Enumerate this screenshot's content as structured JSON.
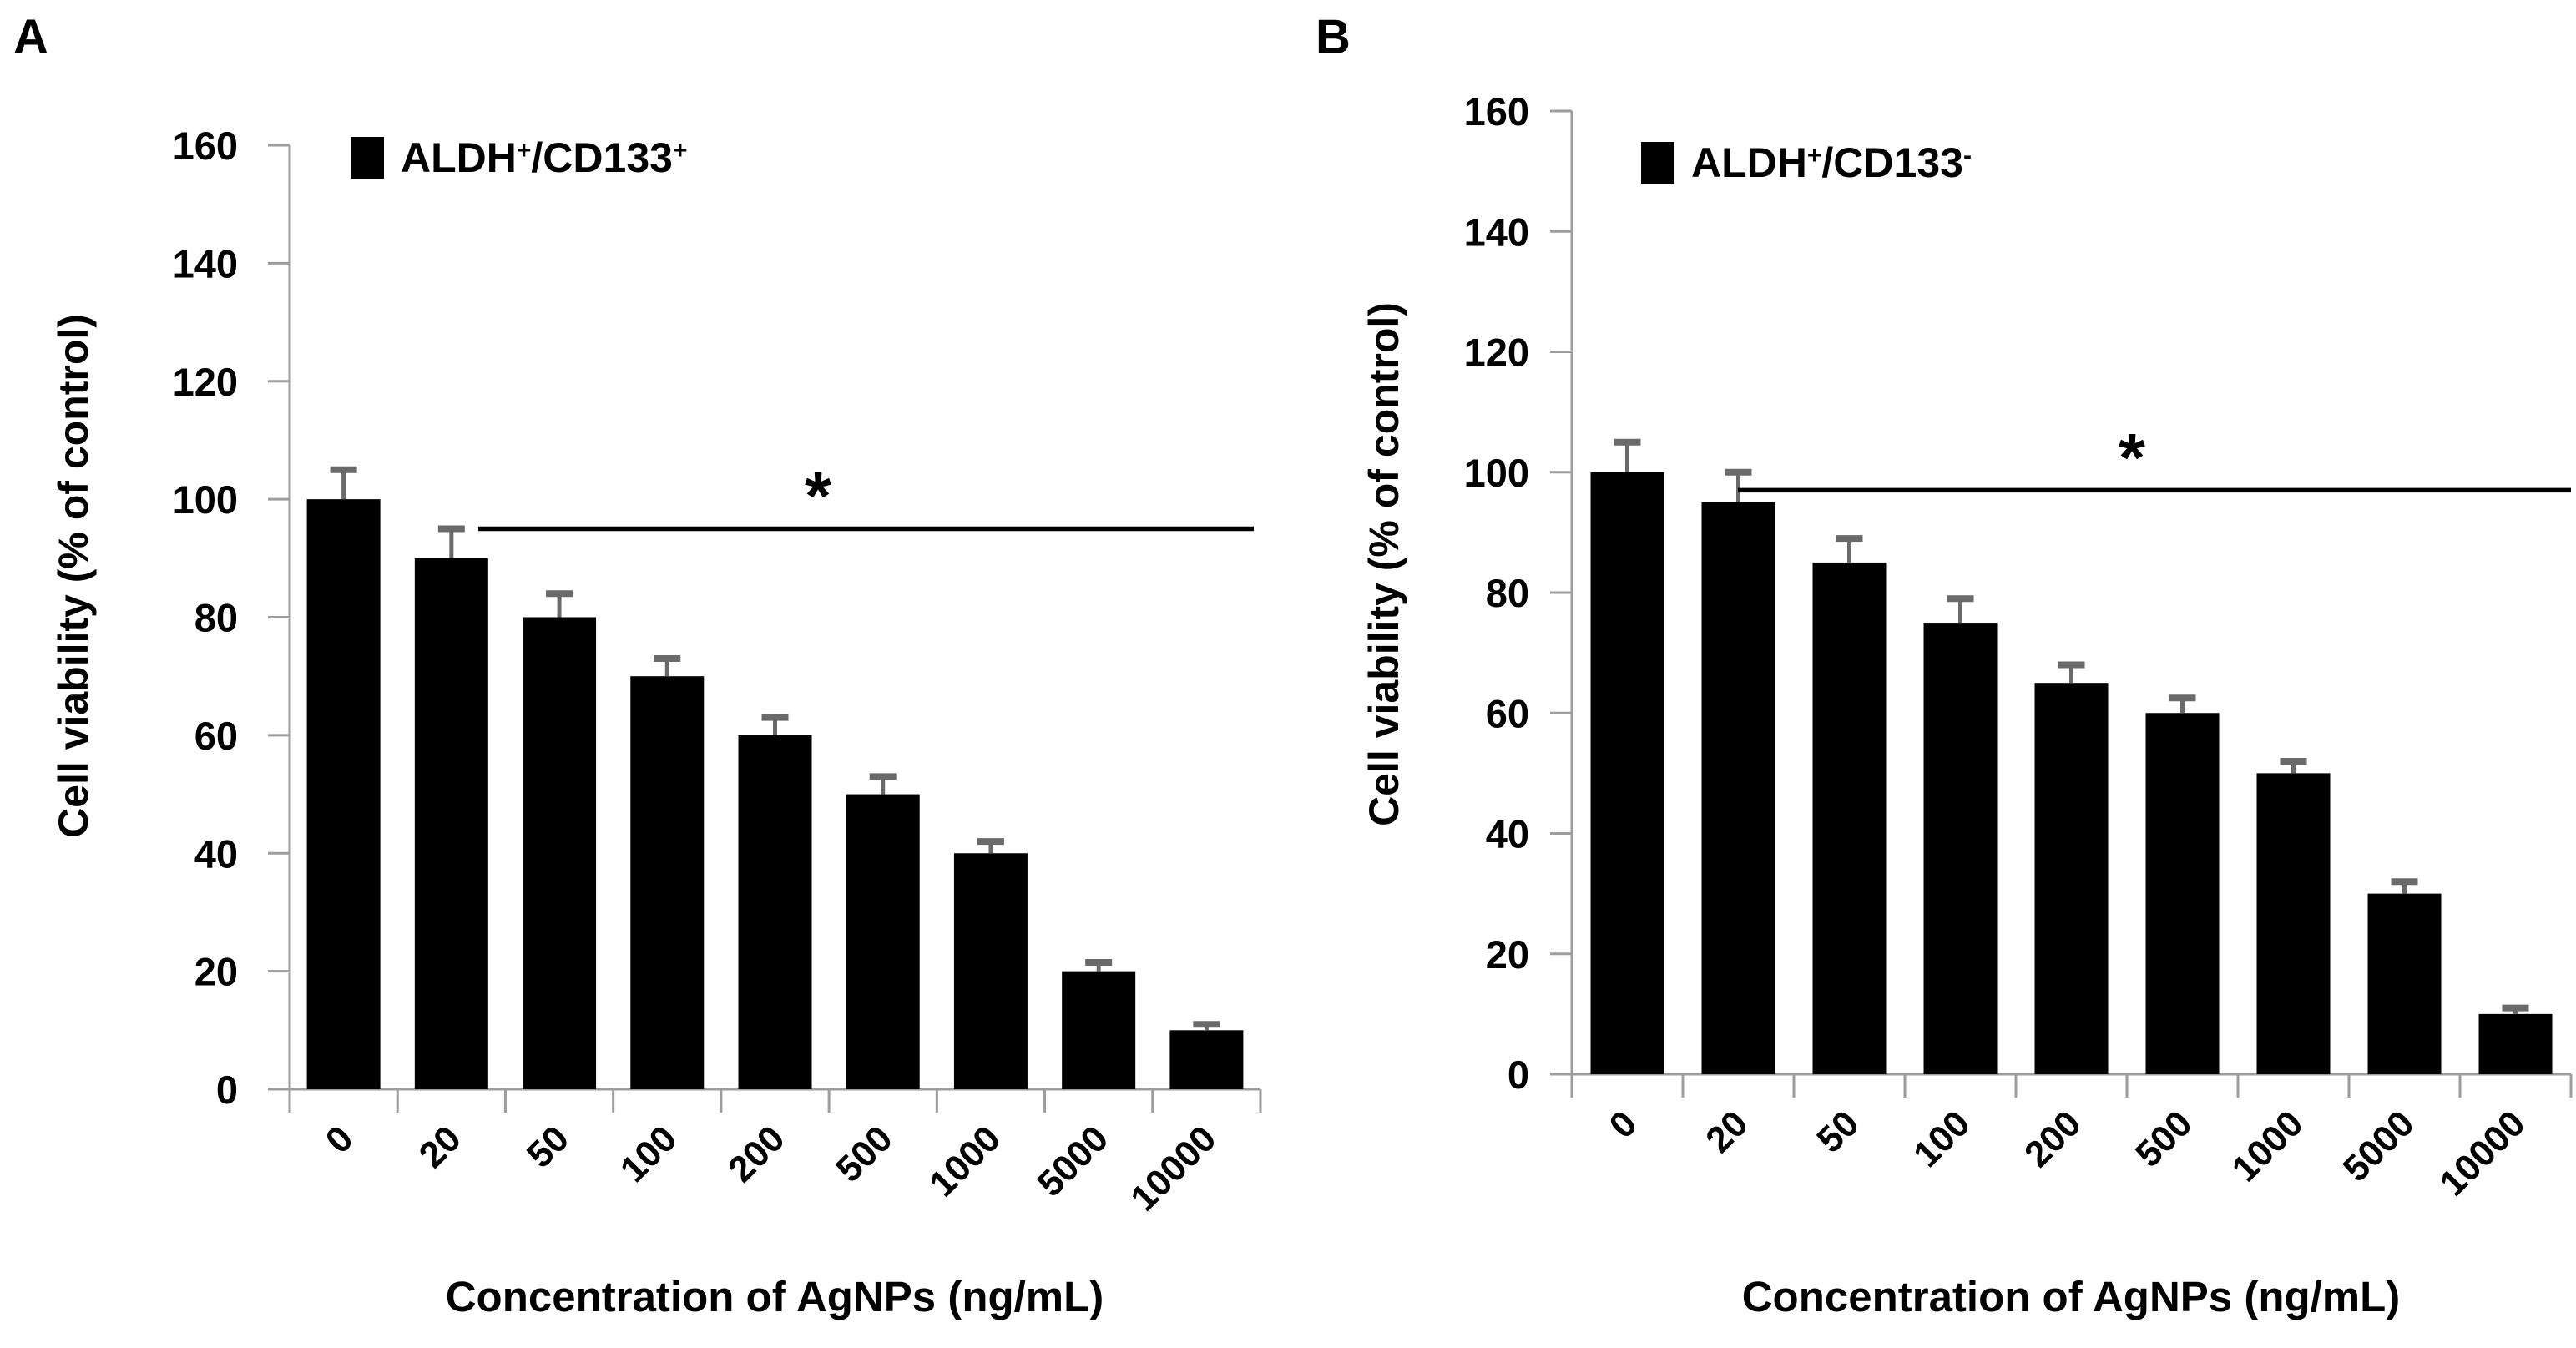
{
  "figure": {
    "background": "#ffffff",
    "panels": [
      {
        "letter": "A"
      },
      {
        "letter": "B"
      }
    ],
    "colors": {
      "bar": "#000000",
      "axis": "#9d9d9d",
      "error_bar": "#6a6a6a",
      "significance": "#000000",
      "text": "#000000"
    }
  },
  "chart_data": [
    {
      "type": "bar",
      "panel": "A",
      "categories": [
        "0",
        "20",
        "50",
        "100",
        "200",
        "500",
        "1000",
        "5000",
        "10000"
      ],
      "values": [
        100,
        90,
        80,
        70,
        60,
        50,
        40,
        20,
        10
      ],
      "errors_plus": [
        5,
        5,
        4,
        3,
        3,
        3,
        2,
        1.5,
        1
      ],
      "xlabel": "Concentration of AgNPs (ng/mL)",
      "ylabel": "Cell viability (% of control)",
      "ylim": [
        0,
        160
      ],
      "ytick_step": 20,
      "grid": false,
      "bar_color": "#000000",
      "legend": {
        "text": "ALDH+/CD133+",
        "parts": {
          "base1": "ALDH",
          "sup1": "+",
          "base2": "/CD133",
          "sup2": "+"
        },
        "position": "top-inside-left",
        "swatch_color": "#000000"
      },
      "significance": {
        "symbol": "*",
        "line_y_percent": 95,
        "spans_categories": [
          "20",
          "10000"
        ]
      }
    },
    {
      "type": "bar",
      "panel": "B",
      "categories": [
        "0",
        "20",
        "50",
        "100",
        "200",
        "500",
        "1000",
        "5000",
        "10000"
      ],
      "values": [
        100,
        95,
        85,
        75,
        65,
        60,
        50,
        30,
        10
      ],
      "errors_plus": [
        5,
        5,
        4,
        4,
        3,
        2.5,
        2,
        2,
        1
      ],
      "xlabel": "Concentration of AgNPs (ng/mL)",
      "ylabel": "Cell viability (% of control)",
      "ylim": [
        0,
        160
      ],
      "ytick_step": 20,
      "grid": false,
      "bar_color": "#000000",
      "legend": {
        "text": "ALDH+/CD133-",
        "parts": {
          "base1": "ALDH",
          "sup1": "+",
          "base2": "/CD133",
          "sup2": "-"
        },
        "position": "top-inside-left",
        "swatch_color": "#000000"
      },
      "significance": {
        "symbol": "*",
        "line_y_percent": 97,
        "spans_categories": [
          "20",
          "10000"
        ]
      }
    }
  ]
}
